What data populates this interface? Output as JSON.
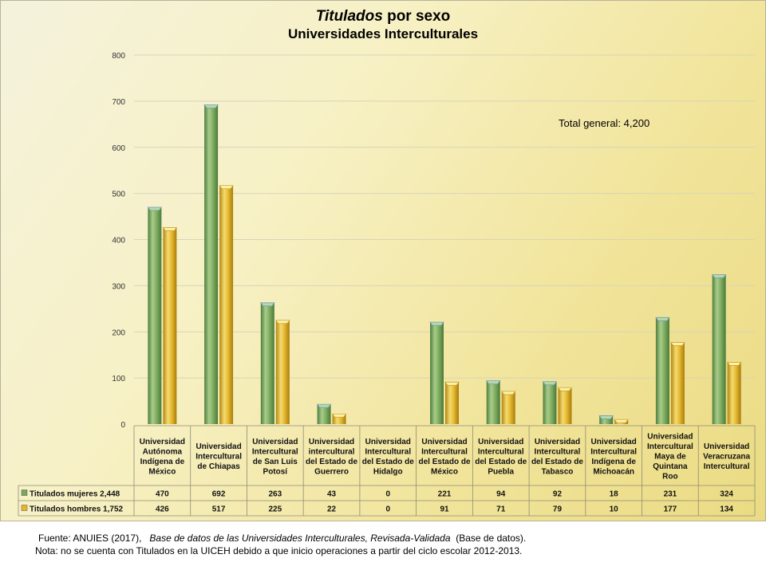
{
  "title": {
    "italic_part": "Titulados",
    "rest": "por sexo",
    "line2": "Universidades Interculturales"
  },
  "total_label": "Total general: 4,200",
  "footer": {
    "source_prefix": "Fuente: ANUIES (2017),",
    "source_italic": "Base de datos de las Universidades Interculturales, Revisada-Validada",
    "source_suffix": "(Base de datos).",
    "note": "Nota: no se cuenta con Titulados en la UICEH debido a que inicio operaciones a partir del ciclo escolar 2012-2013."
  },
  "colors": {
    "women": "#7aa85a",
    "men": "#e6b62a",
    "grid": "#d8d4b8"
  },
  "chart_data": {
    "type": "bar",
    "ylim": [
      0,
      800
    ],
    "yticks": [
      0,
      100,
      200,
      300,
      400,
      500,
      600,
      700,
      800
    ],
    "grid": true,
    "legend_placement": "bottom data table",
    "categories": [
      [
        "Universidad",
        "Autónoma",
        "Indígena de",
        "México"
      ],
      [
        "Universidad",
        "Intercultural",
        "de Chiapas"
      ],
      [
        "Universidad",
        "Intercultural",
        "de San Luis",
        "Potosí"
      ],
      [
        "Universidad",
        "intercultural",
        "del Estado de",
        "Guerrero"
      ],
      [
        "Universidad",
        "Intercultural",
        "del Estado de",
        "Hidalgo"
      ],
      [
        "Universidad",
        "Intercultural",
        "del Estado de",
        "México"
      ],
      [
        "Universidad",
        "Intercultural",
        "del Estado de",
        "Puebla"
      ],
      [
        "Universidad",
        "Intercultural",
        "del Estado de",
        "Tabasco"
      ],
      [
        "Universidad",
        "Intercultural",
        "Indígena de",
        "Michoacán"
      ],
      [
        "Universidad",
        "Intercultural",
        "Maya de",
        "Quintana",
        "Roo"
      ],
      [
        "Universidad",
        "Veracruzana",
        "Intercultural"
      ]
    ],
    "series": [
      {
        "name": "Titulados mujeres 2,448",
        "values": [
          470,
          692,
          263,
          43,
          0,
          221,
          94,
          92,
          18,
          231,
          324
        ]
      },
      {
        "name": "Titulados hombres 1,752",
        "values": [
          426,
          517,
          225,
          22,
          0,
          91,
          71,
          79,
          10,
          177,
          134
        ]
      }
    ]
  }
}
